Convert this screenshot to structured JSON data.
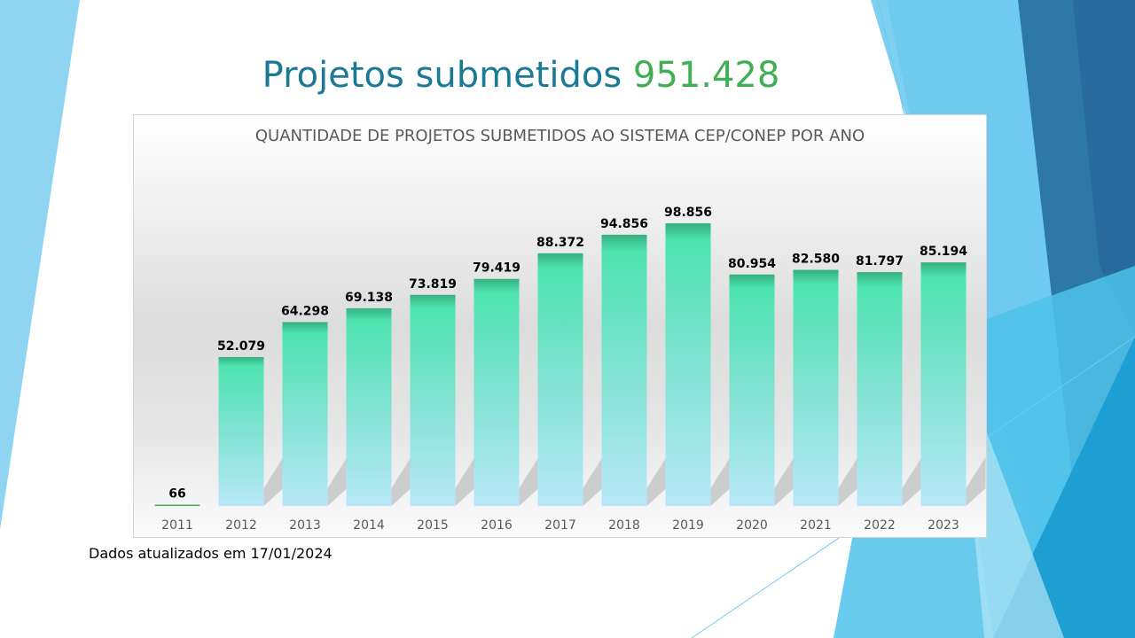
{
  "slide": {
    "title_prefix": "Projetos submetidos",
    "title_total": "951.428",
    "footnote": "Dados atualizados em 17/01/2024"
  },
  "colors": {
    "title": "#1a7a96",
    "total": "#3fae54",
    "bar_top": "#4de3b0",
    "bar_bottom": "#b8e8f8"
  },
  "chart_data": {
    "type": "bar",
    "title": "QUANTIDADE DE PROJETOS SUBMETIDOS AO SISTEMA CEP/CONEP POR ANO",
    "categories": [
      "2011",
      "2012",
      "2013",
      "2014",
      "2015",
      "2016",
      "2017",
      "2018",
      "2019",
      "2020",
      "2021",
      "2022",
      "2023"
    ],
    "values": [
      66,
      52079,
      64298,
      69138,
      73819,
      79419,
      88372,
      94856,
      98856,
      80954,
      82580,
      81797,
      85194
    ],
    "labels": [
      "66",
      "52.079",
      "64.298",
      "69.138",
      "73.819",
      "79.419",
      "88.372",
      "94.856",
      "98.856",
      "80.954",
      "82.580",
      "81.797",
      "85.194"
    ],
    "xlabel": "",
    "ylabel": "",
    "grid": false,
    "legend": "none"
  }
}
